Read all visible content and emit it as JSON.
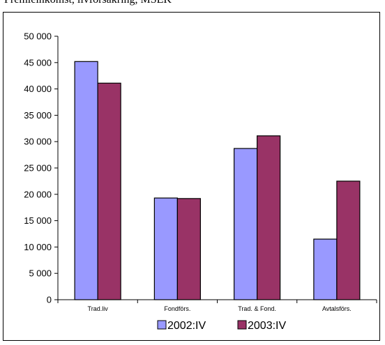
{
  "header": {
    "title": "Premieinkomst, livförsäkring, MSEK"
  },
  "chart_data": {
    "type": "bar",
    "categories": [
      "Trad.liv",
      "Fondförs.",
      "Trad. & Fond.",
      "Avtalsförs."
    ],
    "series": [
      {
        "name": "2002:IV",
        "color": "#9999ff",
        "values": [
          45200,
          19300,
          28700,
          11500
        ]
      },
      {
        "name": "2003:IV",
        "color": "#993366",
        "values": [
          41100,
          19200,
          31100,
          22500
        ]
      }
    ],
    "ylim": [
      0,
      50000
    ],
    "yticks": [
      0,
      5000,
      10000,
      15000,
      20000,
      25000,
      30000,
      35000,
      40000,
      45000,
      50000
    ],
    "ytick_labels": [
      "0",
      "5 000",
      "10 000",
      "15 000",
      "20 000",
      "25 000",
      "30 000",
      "35 000",
      "40 000",
      "45 000",
      "50 000"
    ],
    "legend_position": "bottom",
    "grid": false
  }
}
